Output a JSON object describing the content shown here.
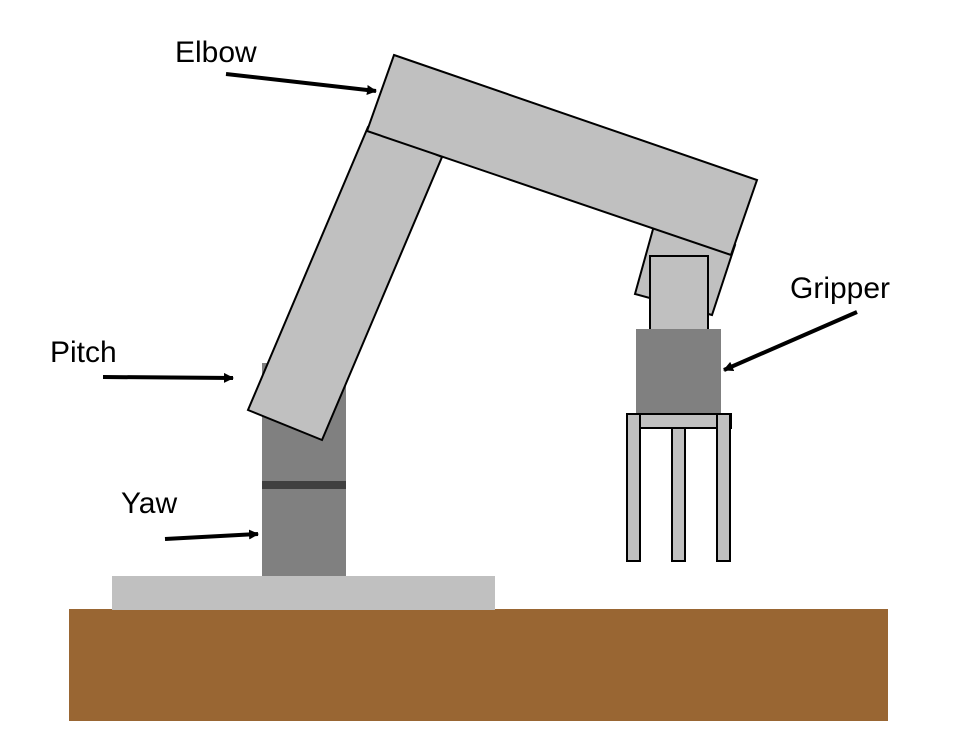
{
  "labels": {
    "elbow": "Elbow",
    "pitch": "Pitch",
    "yaw": "Yaw",
    "gripper": "Gripper"
  },
  "colors": {
    "background": "#ffffff",
    "ground": "#996633",
    "base_plate": "#c0c0c0",
    "arm_link": "#c0c0c0",
    "joint_dark": "#808080",
    "joint_ring": "#404040",
    "finger": "#c0c0c0",
    "outline": "#000000"
  }
}
